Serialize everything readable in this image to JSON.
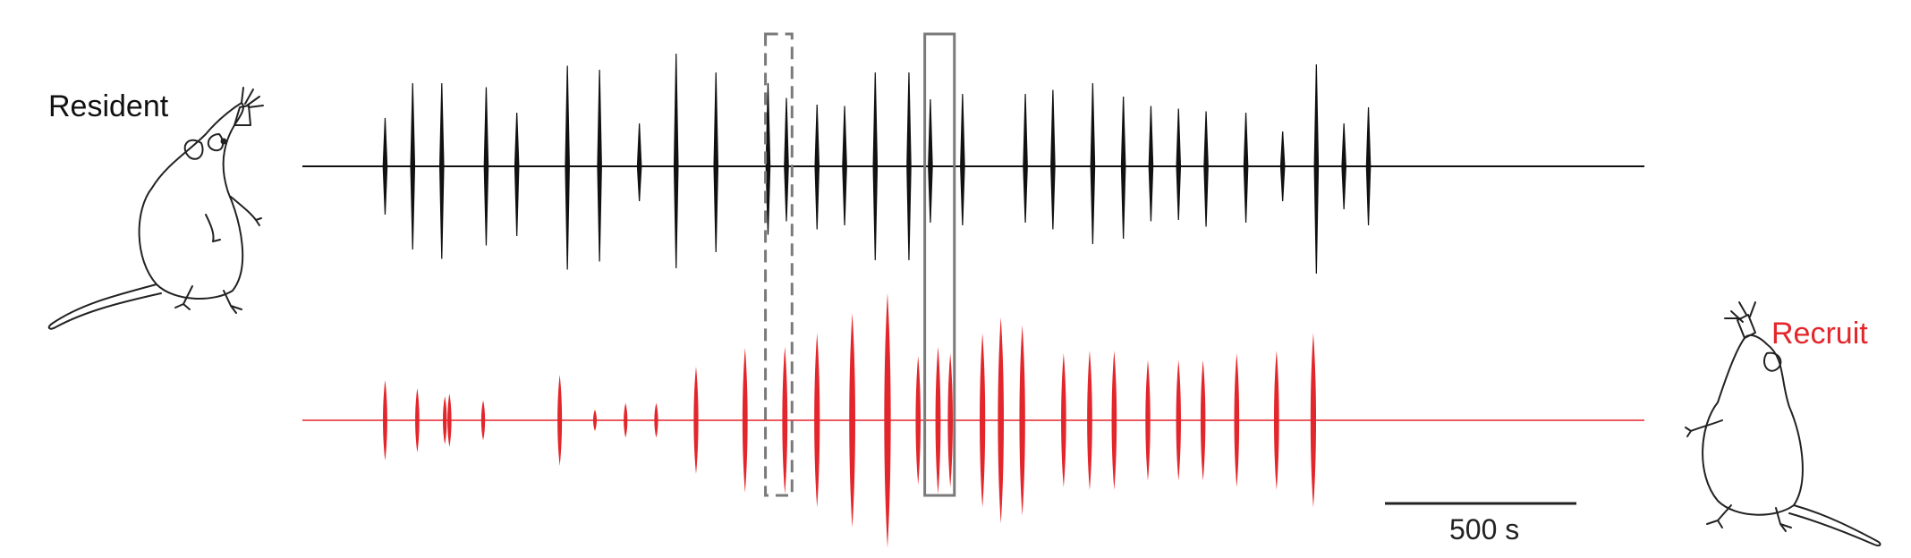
{
  "labels": {
    "resident": "Resident",
    "recruit": "Recruit",
    "scale_bar": "500 s"
  },
  "colors": {
    "resident_trace": "#111111",
    "recruit_trace": "#e3262b",
    "box_dashed": "#7a7a7a",
    "box_solid": "#7a7a7a"
  },
  "icons": [
    "mouse-resident-icon",
    "mouse-recruit-icon"
  ],
  "chart_data": {
    "type": "line",
    "title": "",
    "xlabel": "",
    "ylabel": "",
    "grid": false,
    "xlim": [
      0,
      4480
    ],
    "scale_bar_seconds": 500,
    "series": [
      {
        "name": "Resident",
        "events": [
          {
            "t": 270,
            "up": 0.36,
            "down": 0.36
          },
          {
            "t": 360,
            "up": 0.62,
            "down": 0.62
          },
          {
            "t": 455,
            "up": 0.62,
            "down": 0.69
          },
          {
            "t": 600,
            "up": 0.59,
            "down": 0.59
          },
          {
            "t": 700,
            "up": 0.4,
            "down": 0.52
          },
          {
            "t": 865,
            "up": 0.75,
            "down": 0.77
          },
          {
            "t": 970,
            "up": 0.72,
            "down": 0.71
          },
          {
            "t": 1100,
            "up": 0.32,
            "down": 0.26
          },
          {
            "t": 1220,
            "up": 0.84,
            "down": 0.76
          },
          {
            "t": 1350,
            "up": 0.7,
            "down": 0.64
          },
          {
            "t": 1520,
            "up": 0.62,
            "down": 0.51
          },
          {
            "t": 1580,
            "up": 0.51,
            "down": 0.41
          },
          {
            "t": 1680,
            "up": 0.46,
            "down": 0.47
          },
          {
            "t": 1770,
            "up": 0.45,
            "down": 0.44
          },
          {
            "t": 1870,
            "up": 0.7,
            "down": 0.7
          },
          {
            "t": 1980,
            "up": 0.7,
            "down": 0.7
          },
          {
            "t": 2050,
            "up": 0.5,
            "down": 0.42
          },
          {
            "t": 2155,
            "up": 0.54,
            "down": 0.44
          },
          {
            "t": 2360,
            "up": 0.54,
            "down": 0.42
          },
          {
            "t": 2450,
            "up": 0.57,
            "down": 0.47
          },
          {
            "t": 2580,
            "up": 0.62,
            "down": 0.58
          },
          {
            "t": 2680,
            "up": 0.52,
            "down": 0.54
          },
          {
            "t": 2770,
            "up": 0.45,
            "down": 0.41
          },
          {
            "t": 2860,
            "up": 0.43,
            "down": 0.4
          },
          {
            "t": 2950,
            "up": 0.41,
            "down": 0.45
          },
          {
            "t": 3080,
            "up": 0.4,
            "down": 0.42
          },
          {
            "t": 3200,
            "up": 0.26,
            "down": 0.26
          },
          {
            "t": 3310,
            "up": 0.76,
            "down": 0.8
          },
          {
            "t": 3400,
            "up": 0.32,
            "down": 0.32
          },
          {
            "t": 3480,
            "up": 0.44,
            "down": 0.44
          }
        ]
      },
      {
        "name": "Recruit",
        "events": [
          {
            "t": 270,
            "amp": 0.3
          },
          {
            "t": 375,
            "amp": 0.24
          },
          {
            "t": 465,
            "amp": 0.18
          },
          {
            "t": 480,
            "amp": 0.2
          },
          {
            "t": 590,
            "amp": 0.15
          },
          {
            "t": 840,
            "amp": 0.34
          },
          {
            "t": 955,
            "amp": 0.08
          },
          {
            "t": 1055,
            "amp": 0.13
          },
          {
            "t": 1155,
            "amp": 0.13
          },
          {
            "t": 1285,
            "amp": 0.4
          },
          {
            "t": 1445,
            "amp": 0.54
          },
          {
            "t": 1575,
            "amp": 0.55
          },
          {
            "t": 1680,
            "amp": 0.65
          },
          {
            "t": 1795,
            "amp": 0.8
          },
          {
            "t": 1910,
            "amp": 0.95
          },
          {
            "t": 2010,
            "amp": 0.48
          },
          {
            "t": 2075,
            "amp": 0.55
          },
          {
            "t": 2115,
            "amp": 0.5
          },
          {
            "t": 2220,
            "amp": 0.65
          },
          {
            "t": 2280,
            "amp": 0.77
          },
          {
            "t": 2350,
            "amp": 0.71
          },
          {
            "t": 2485,
            "amp": 0.5
          },
          {
            "t": 2570,
            "amp": 0.52
          },
          {
            "t": 2650,
            "amp": 0.52
          },
          {
            "t": 2760,
            "amp": 0.45
          },
          {
            "t": 2860,
            "amp": 0.45
          },
          {
            "t": 2940,
            "amp": 0.45
          },
          {
            "t": 3050,
            "amp": 0.5
          },
          {
            "t": 3180,
            "amp": 0.52
          },
          {
            "t": 3300,
            "amp": 0.65
          }
        ]
      }
    ],
    "highlights": [
      {
        "style": "dashed",
        "t_start": 1535,
        "t_end": 1575
      },
      {
        "style": "solid",
        "t_start": 2055,
        "t_end": 2105
      }
    ]
  }
}
